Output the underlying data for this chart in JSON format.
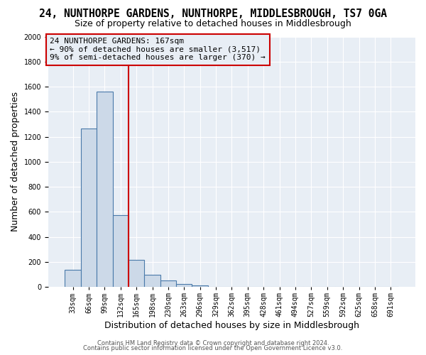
{
  "title": "24, NUNTHORPE GARDENS, NUNTHORPE, MIDDLESBROUGH, TS7 0GA",
  "subtitle": "Size of property relative to detached houses in Middlesbrough",
  "xlabel": "Distribution of detached houses by size in Middlesbrough",
  "ylabel": "Number of detached properties",
  "bar_labels": [
    "33sqm",
    "66sqm",
    "99sqm",
    "132sqm",
    "165sqm",
    "198sqm",
    "230sqm",
    "263sqm",
    "296sqm",
    "329sqm",
    "362sqm",
    "395sqm",
    "428sqm",
    "461sqm",
    "494sqm",
    "527sqm",
    "559sqm",
    "592sqm",
    "625sqm",
    "658sqm",
    "691sqm"
  ],
  "bar_values": [
    140,
    1265,
    1560,
    575,
    215,
    95,
    55,
    25,
    15,
    0,
    0,
    0,
    0,
    0,
    0,
    0,
    0,
    0,
    0,
    0,
    0
  ],
  "bar_color": "#ccd9e8",
  "bar_edge_color": "#4a7aaa",
  "vline_x": 4,
  "vline_color": "#cc0000",
  "ylim": [
    0,
    2000
  ],
  "yticks": [
    0,
    200,
    400,
    600,
    800,
    1000,
    1200,
    1400,
    1600,
    1800,
    2000
  ],
  "annotation_line1": "24 NUNTHORPE GARDENS: 167sqm",
  "annotation_line2": "← 90% of detached houses are smaller (3,517)",
  "annotation_line3": "9% of semi-detached houses are larger (370) →",
  "annotation_box_color": "#cc0000",
  "footer_line1": "Contains HM Land Registry data © Crown copyright and database right 2024.",
  "footer_line2": "Contains public sector information licensed under the Open Government Licence v3.0.",
  "background_color": "#ffffff",
  "plot_bg_color": "#e8eef5",
  "grid_color": "#ffffff",
  "title_fontsize": 10.5,
  "subtitle_fontsize": 9,
  "axis_label_fontsize": 9,
  "tick_fontsize": 7,
  "annotation_fontsize": 8,
  "footer_fontsize": 6
}
